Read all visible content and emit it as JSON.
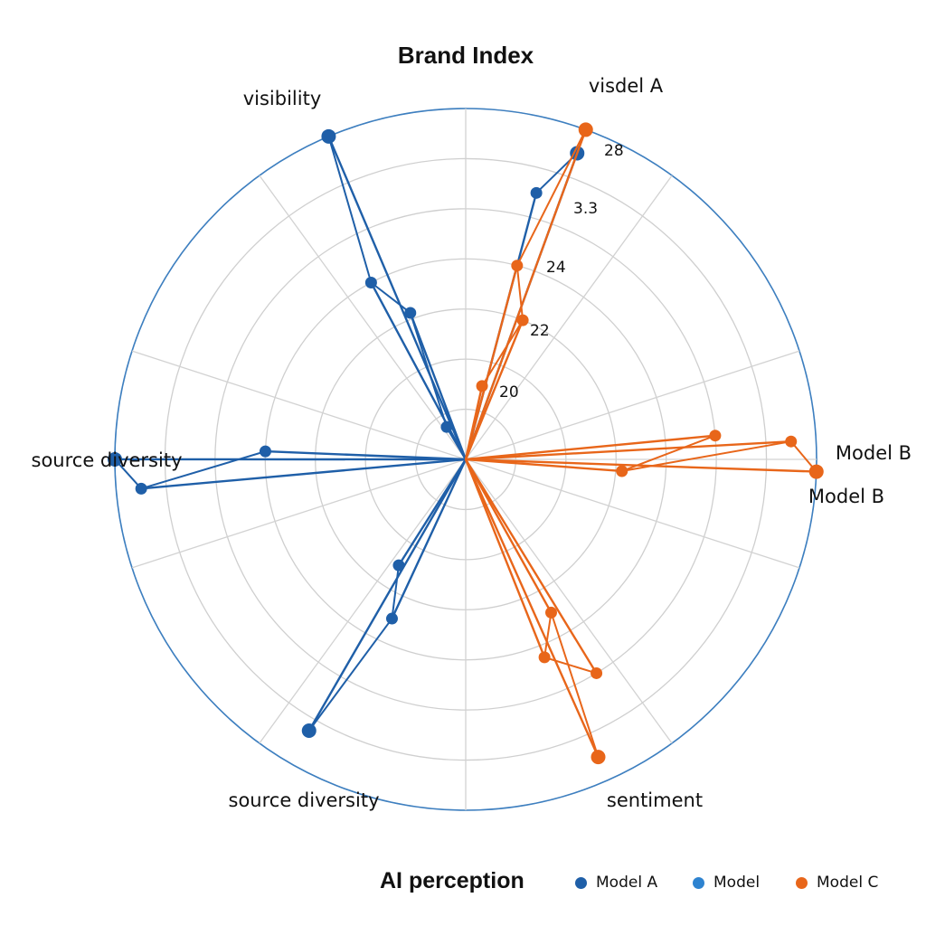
{
  "chart_data": {
    "type": "radar",
    "title": "Brand Index",
    "axes": [
      "visdel A",
      "Model B",
      "sentiment",
      "source diversity",
      "source diversity",
      "visibility"
    ],
    "extra_labels": [
      "Model B"
    ],
    "tick_labels": [
      "20",
      "22",
      "24",
      "3.3",
      "28"
    ],
    "rmax": 28,
    "rings": 7,
    "spokes": 10,
    "series": [
      {
        "name": "Model A",
        "color": "#1f5fa8",
        "points": [
          {
            "axis": "visdel A",
            "values": [
              26,
              22
            ]
          },
          {
            "axis": "visibility",
            "values": [
              28,
              16,
              12.5,
              3
            ]
          },
          {
            "axis": "source diversity",
            "values": [
              28,
              26,
              16
            ]
          },
          {
            "axis": "source diversity",
            "values": [
              25,
              14,
              10
            ]
          }
        ]
      },
      {
        "name": "Model",
        "color": "#2e83d0",
        "points": []
      },
      {
        "name": "Model C",
        "color": "#e8661a",
        "points": [
          {
            "axis": "visdel A",
            "values": [
              28,
              16,
              12,
              6
            ]
          },
          {
            "axis": "Model B",
            "values": [
              28,
              26,
              12.5,
              20
            ]
          },
          {
            "axis": "sentiment",
            "values": [
              26,
              14,
              17,
              20
            ]
          }
        ]
      }
    ],
    "legend": {
      "title": "AI perception",
      "entries": [
        {
          "label": "Model A",
          "color": "#1f5fa8"
        },
        {
          "label": "Model",
          "color": "#2e83d0"
        },
        {
          "label": "Model C",
          "color": "#e8661a"
        }
      ]
    }
  }
}
